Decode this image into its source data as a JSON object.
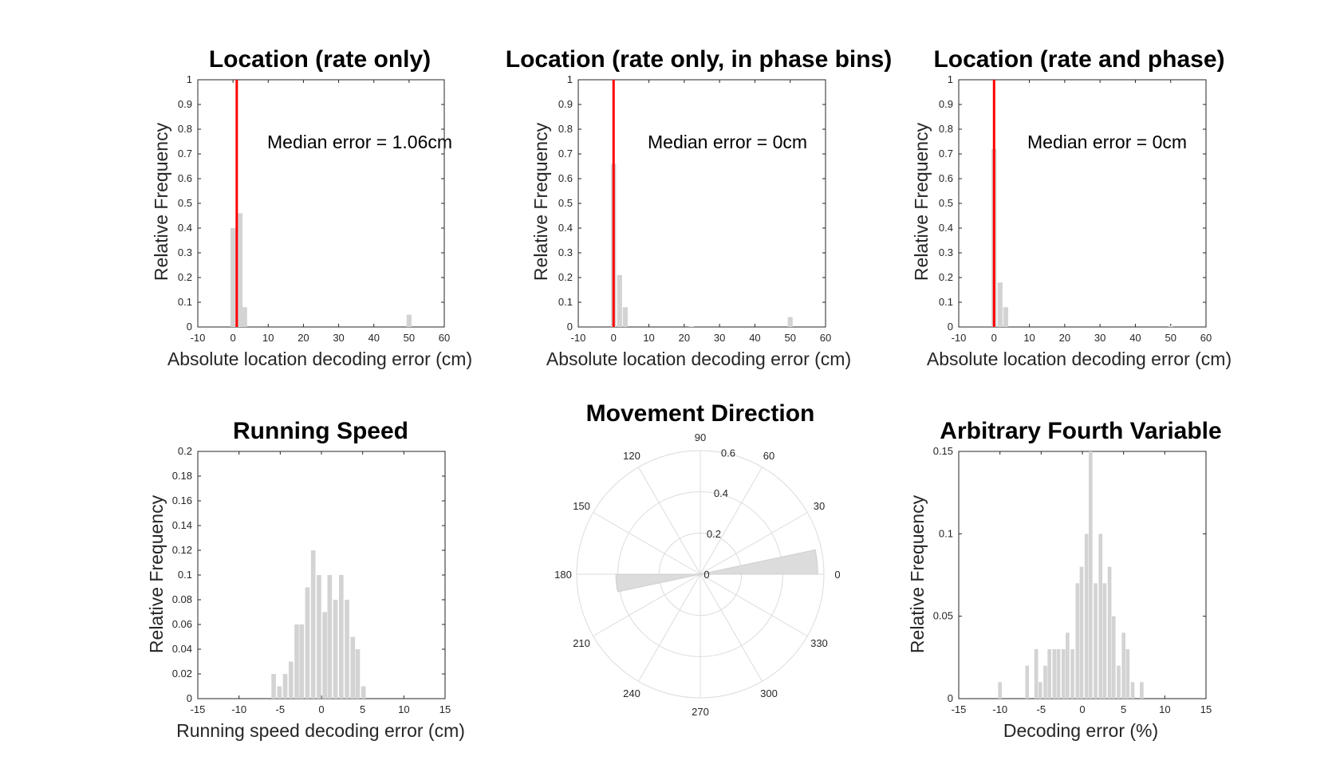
{
  "chart_data": [
    {
      "type": "bar",
      "title": "Location (rate only)",
      "xlabel": "Absolute location decoding error (cm)",
      "ylabel": "Relative Frequency",
      "xlim": [
        -10,
        60
      ],
      "ylim": [
        0,
        1
      ],
      "xticks": [
        -10,
        0,
        10,
        20,
        30,
        40,
        50,
        60
      ],
      "yticks": [
        0,
        0.1,
        0.2,
        0.3,
        0.4,
        0.5,
        0.6,
        0.7,
        0.8,
        0.9,
        1
      ],
      "bar_width": 1.4,
      "x": [
        0,
        2,
        3.3,
        50
      ],
      "values": [
        0.4,
        0.46,
        0.08,
        0.05
      ],
      "median_line": 1.06,
      "annotation": "Median error = 1.06cm"
    },
    {
      "type": "bar",
      "title": "Location (rate only, in phase bins)",
      "xlabel": "Absolute location decoding error (cm)",
      "ylabel": "Relative Frequency",
      "xlim": [
        -10,
        60
      ],
      "ylim": [
        0,
        1
      ],
      "xticks": [
        -10,
        0,
        10,
        20,
        30,
        40,
        50,
        60
      ],
      "yticks": [
        0,
        0.1,
        0.2,
        0.3,
        0.4,
        0.5,
        0.6,
        0.7,
        0.8,
        0.9,
        1
      ],
      "bar_width": 1.4,
      "x": [
        0,
        1.7,
        3.3,
        22,
        50
      ],
      "values": [
        0.66,
        0.21,
        0.08,
        0.003,
        0.04
      ],
      "median_line": 0,
      "annotation": "Median error = 0cm"
    },
    {
      "type": "bar",
      "title": "Location (rate and phase)",
      "xlabel": "Absolute location decoding error (cm)",
      "ylabel": "Relative Frequency",
      "xlim": [
        -10,
        60
      ],
      "ylim": [
        0,
        1
      ],
      "xticks": [
        -10,
        0,
        10,
        20,
        30,
        40,
        50,
        60
      ],
      "yticks": [
        0,
        0.1,
        0.2,
        0.3,
        0.4,
        0.5,
        0.6,
        0.7,
        0.8,
        0.9,
        1
      ],
      "bar_width": 1.4,
      "x": [
        0,
        1.7,
        3.3,
        50
      ],
      "values": [
        0.72,
        0.18,
        0.08,
        0.005
      ],
      "median_line": 0,
      "annotation": "Median error = 0cm"
    },
    {
      "type": "bar",
      "title": "Running Speed",
      "xlabel": "Running speed decoding error (cm)",
      "ylabel": "Relative Frequency",
      "xlim": [
        -15,
        15
      ],
      "ylim": [
        0,
        0.2
      ],
      "xticks": [
        -15,
        -10,
        -5,
        0,
        5,
        10,
        15
      ],
      "yticks": [
        0,
        0.02,
        0.04,
        0.06,
        0.08,
        0.1,
        0.12,
        0.14,
        0.16,
        0.18,
        0.2
      ],
      "bar_width": 0.55,
      "x": [
        -5.8,
        -5.1,
        -4.4,
        -3.7,
        -3.0,
        -2.4,
        -1.7,
        -1.0,
        -0.3,
        0.4,
        1.0,
        1.7,
        2.4,
        3.1,
        3.8,
        4.4,
        5.1
      ],
      "values": [
        0.02,
        0.01,
        0.02,
        0.03,
        0.06,
        0.06,
        0.09,
        0.12,
        0.1,
        0.07,
        0.1,
        0.08,
        0.1,
        0.08,
        0.05,
        0.04,
        0.01
      ]
    },
    {
      "type": "polar-histogram",
      "title": "Movement Direction",
      "rlim": [
        0,
        0.6
      ],
      "rticks": [
        0,
        0.2,
        0.4,
        0.6
      ],
      "thetaticks": [
        0,
        30,
        60,
        90,
        120,
        150,
        180,
        210,
        240,
        270,
        300,
        330
      ],
      "wedges": [
        {
          "theta_start": 0,
          "theta_end": 12,
          "value": 0.57
        },
        {
          "theta_start": 180,
          "theta_end": 192,
          "value": 0.41
        }
      ]
    },
    {
      "type": "bar",
      "title": "Arbitrary Fourth Variable",
      "xlabel": "Decoding error (%)",
      "ylabel": "Relative Frequency",
      "xlim": [
        -15,
        15
      ],
      "ylim": [
        0,
        0.15
      ],
      "xticks": [
        -15,
        -10,
        -5,
        0,
        5,
        10,
        15
      ],
      "yticks": [
        0,
        0.05,
        0.1,
        0.15
      ],
      "bar_width": 0.45,
      "x": [
        -10,
        -6.7,
        -5.6,
        -5.1,
        -4.5,
        -4.0,
        -3.4,
        -2.9,
        -2.3,
        -1.8,
        -1.2,
        -0.6,
        -0.1,
        0.5,
        1.0,
        1.6,
        2.2,
        2.7,
        3.3,
        3.8,
        4.4,
        5.0,
        5.5,
        6.1,
        7.2
      ],
      "values": [
        0.01,
        0.02,
        0.03,
        0.01,
        0.02,
        0.03,
        0.03,
        0.03,
        0.03,
        0.04,
        0.03,
        0.07,
        0.08,
        0.1,
        0.15,
        0.07,
        0.1,
        0.07,
        0.08,
        0.05,
        0.02,
        0.04,
        0.03,
        0.01,
        0.01
      ]
    }
  ]
}
